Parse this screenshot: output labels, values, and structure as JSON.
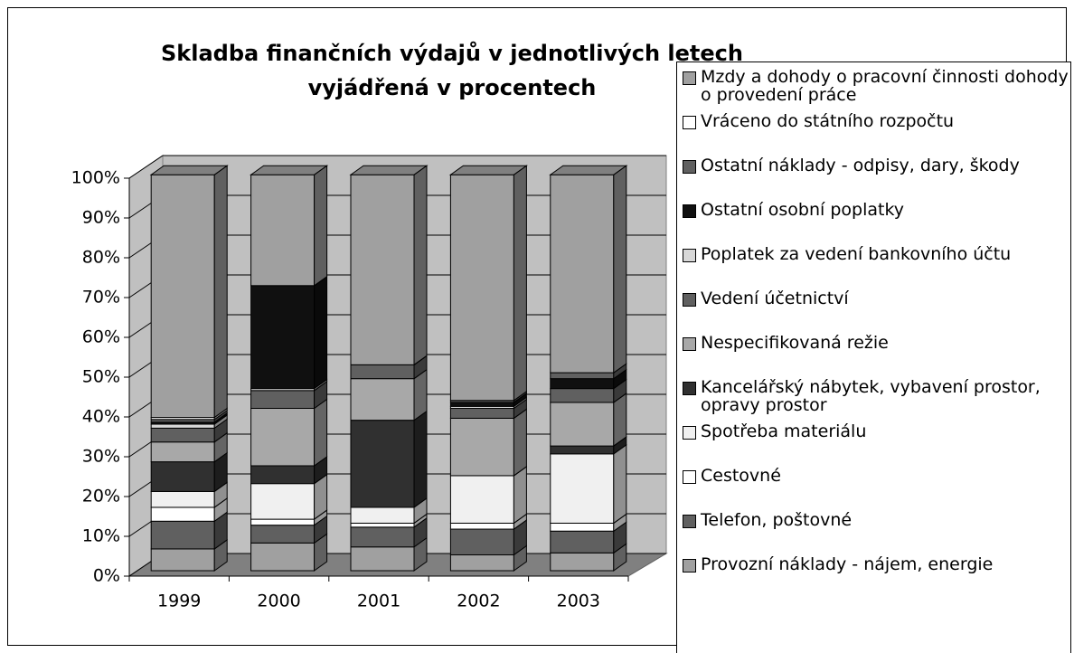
{
  "chart_data": {
    "type": "stacked_bar_3d",
    "title": "Skladba finančních výdajů v jednotlivých letech vyjádřená v procentech",
    "categories": [
      "1999",
      "2000",
      "2001",
      "2002",
      "2003"
    ],
    "ylim": [
      0,
      100
    ],
    "yticks": [
      {
        "value": 0,
        "label": "0%"
      },
      {
        "value": 10,
        "label": "10%"
      },
      {
        "value": 20,
        "label": "20%"
      },
      {
        "value": 30,
        "label": "30%"
      },
      {
        "value": 40,
        "label": "40%"
      },
      {
        "value": 50,
        "label": "50%"
      },
      {
        "value": 60,
        "label": "60%"
      },
      {
        "value": 70,
        "label": "70%"
      },
      {
        "value": 80,
        "label": "80%"
      },
      {
        "value": 90,
        "label": "90%"
      },
      {
        "value": 100,
        "label": "100%"
      }
    ],
    "grid": true,
    "legend": "right",
    "series": [
      {
        "name": "Provozní náklady - nájem, energie",
        "color": "#a0a0a0",
        "values": [
          5.5,
          7,
          6,
          4,
          4.5
        ]
      },
      {
        "name": "Telefon, poštovné",
        "color": "#606060",
        "values": [
          7,
          4.5,
          5,
          6.5,
          5.5
        ]
      },
      {
        "name": "Cestovné",
        "color": "#ffffff",
        "values": [
          3.5,
          1.5,
          1,
          1.5,
          2
        ]
      },
      {
        "name": "Spotřeba materiálu",
        "color": "#f0f0f0",
        "values": [
          4,
          9,
          4,
          12,
          17.5
        ]
      },
      {
        "name": "Kancelářský nábytek, vybavení prostor, opravy prostor",
        "color": "#303030",
        "values": [
          7.5,
          4.5,
          22,
          0,
          2
        ]
      },
      {
        "name": "Nespecifikovaná režie",
        "color": "#a8a8a8",
        "values": [
          5,
          14.5,
          10.5,
          14.5,
          11
        ]
      },
      {
        "name": "Vedení účetnictví",
        "color": "#606060",
        "values": [
          3.5,
          4.5,
          3.5,
          2.5,
          3.5
        ]
      },
      {
        "name": "Poplatek za vedení bankovního účtu",
        "color": "#d8d8d8",
        "values": [
          1,
          0.5,
          0,
          0.5,
          0
        ]
      },
      {
        "name": "Ostatní osobní poplatky",
        "color": "#101010",
        "values": [
          0.5,
          26,
          0,
          1,
          2.5
        ]
      },
      {
        "name": "Ostatní náklady - odpisy, dary, škody",
        "color": "#606060",
        "values": [
          0.7,
          0,
          0,
          0.5,
          1.5
        ]
      },
      {
        "name": "Vráceno do státního rozpočtu",
        "color": "#ffffff",
        "values": [
          0.5,
          0,
          0,
          0,
          0
        ]
      },
      {
        "name": "Mzdy a dohody o pracovní činnosti dohody o provedení práce",
        "color": "#a0a0a0",
        "values": [
          61.3,
          28,
          48,
          57,
          50
        ]
      }
    ]
  }
}
